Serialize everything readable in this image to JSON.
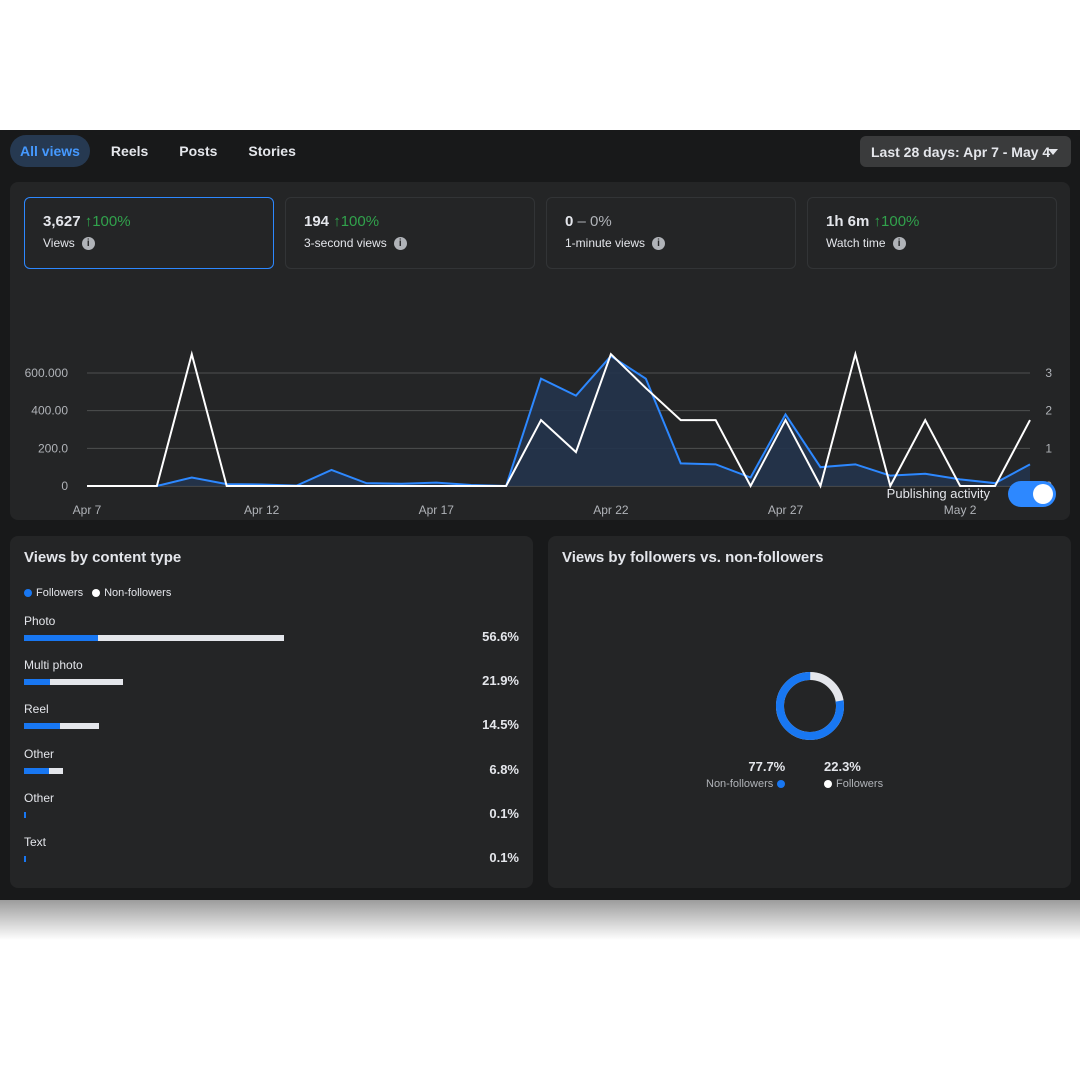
{
  "tabs": [
    {
      "label": "All views",
      "active": true
    },
    {
      "label": "Reels",
      "active": false
    },
    {
      "label": "Posts",
      "active": false
    },
    {
      "label": "Stories",
      "active": false
    }
  ],
  "date_range": {
    "label": "Last 28 days: Apr 7 - May 4",
    "icon": "caret-down-icon"
  },
  "metrics": [
    {
      "value": "3,627",
      "change": "100%",
      "direction": "up",
      "label": "Views",
      "selected": true
    },
    {
      "value": "194",
      "change": "100%",
      "direction": "up",
      "label": "3-second views",
      "selected": false
    },
    {
      "value": "0",
      "change": "0%",
      "direction": "flat",
      "label": "1-minute views",
      "selected": false
    },
    {
      "value": "1h 6m",
      "change": "100%",
      "direction": "up",
      "label": "Watch time",
      "selected": false
    }
  ],
  "publishing_activity": {
    "label": "Publishing activity",
    "on": true
  },
  "chart_data": {
    "type": "line",
    "x": [
      "Apr 7",
      "Apr 8",
      "Apr 9",
      "Apr 10",
      "Apr 11",
      "Apr 12",
      "Apr 13",
      "Apr 14",
      "Apr 15",
      "Apr 16",
      "Apr 17",
      "Apr 18",
      "Apr 19",
      "Apr 20",
      "Apr 21",
      "Apr 22",
      "Apr 23",
      "Apr 24",
      "Apr 25",
      "Apr 26",
      "Apr 27",
      "Apr 28",
      "Apr 29",
      "Apr 30",
      "May 1",
      "May 2",
      "May 3",
      "May 4"
    ],
    "x_tick_labels": [
      "Apr 7",
      "Apr 12",
      "Apr 17",
      "Apr 22",
      "Apr 27",
      "May 2"
    ],
    "left_axis": {
      "ticks": [
        0,
        200,
        400,
        600
      ],
      "tick_labels": [
        "0",
        "200.0",
        "400.00",
        "600.000"
      ],
      "ylim": [
        0,
        680
      ]
    },
    "right_axis": {
      "ticks": [
        0,
        1,
        2,
        3
      ],
      "tick_labels": [
        "0",
        "1",
        "2",
        "3"
      ],
      "ylim": [
        0,
        3.4
      ]
    },
    "series": [
      {
        "name": "",
        "axis": "left",
        "color": "#2d88ff",
        "filled": true,
        "values": [
          0,
          0,
          0,
          45,
          10,
          8,
          2,
          85,
          15,
          12,
          18,
          5,
          0,
          570,
          480,
          690,
          570,
          120,
          115,
          45,
          380,
          100,
          115,
          55,
          65,
          35,
          15,
          115
        ]
      },
      {
        "name": "",
        "axis": "right",
        "color": "#ffffff",
        "filled": false,
        "values": [
          0,
          0,
          0,
          3.5,
          0,
          0,
          0,
          0,
          0,
          0,
          0,
          0,
          0,
          1.75,
          0.9,
          3.5,
          2.6,
          1.75,
          1.75,
          0,
          1.75,
          0,
          3.5,
          0,
          1.75,
          0,
          0,
          1.75
        ]
      }
    ],
    "grid": true
  },
  "content_type": {
    "title": "Views by content type",
    "legend": [
      {
        "label": "Followers",
        "color": "#1877f2"
      },
      {
        "label": "Non-followers",
        "color": "#ffffff"
      }
    ],
    "rows": [
      {
        "label": "Photo",
        "percent": "56.6%",
        "followers_share": 0.096,
        "non_followers_share": 0.47
      },
      {
        "label": "Multi photo",
        "percent": "21.9%",
        "followers_share": 0.034,
        "non_followers_share": 0.185
      },
      {
        "label": "Reel",
        "percent": "14.5%",
        "followers_share": 0.047,
        "non_followers_share": 0.098
      },
      {
        "label": "Other",
        "percent": "6.8%",
        "followers_share": 0.032,
        "non_followers_share": 0.036
      },
      {
        "label": "Other",
        "percent": "0.1%",
        "followers_share": 0.001,
        "non_followers_share": 0.0
      },
      {
        "label": "Text",
        "percent": "0.1%",
        "followers_share": 0.001,
        "non_followers_share": 0.0
      }
    ]
  },
  "followers_split": {
    "title": "Views by followers vs. non-followers",
    "non_followers": {
      "value": "77.7%",
      "label": "Non-followers",
      "fraction": 0.777,
      "color": "#1877f2"
    },
    "followers": {
      "value": "22.3%",
      "label": "Followers",
      "fraction": 0.223,
      "color": "#ffffff"
    }
  }
}
